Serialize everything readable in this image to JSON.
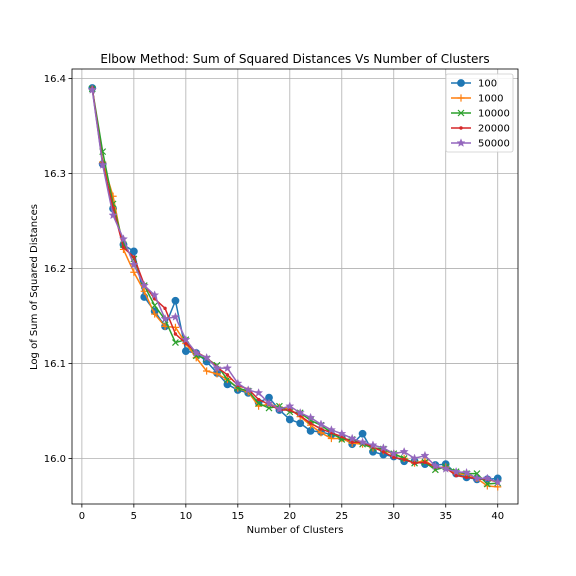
{
  "chart_data": {
    "type": "line",
    "title": "Elbow Method: Sum of Squared Distances Vs Number of Clusters",
    "xlabel": "Number of Clusters",
    "ylabel": "Log of Sum of Squared Distances",
    "xlim": [
      -0.95,
      41.95
    ],
    "ylim": [
      15.952,
      16.41
    ],
    "x_ticks": [
      0,
      5,
      10,
      15,
      20,
      25,
      30,
      35,
      40
    ],
    "y_ticks": [
      16.0,
      16.1,
      16.2,
      16.3,
      16.4
    ],
    "x_tick_labels": [
      "0",
      "5",
      "10",
      "15",
      "20",
      "25",
      "30",
      "35",
      "40"
    ],
    "y_tick_labels": [
      "16.0",
      "16.1",
      "16.2",
      "16.3",
      "16.4"
    ],
    "grid": true,
    "legend_position": "top-right",
    "x": [
      1,
      2,
      3,
      4,
      5,
      6,
      7,
      8,
      9,
      10,
      11,
      12,
      13,
      14,
      15,
      16,
      17,
      18,
      19,
      20,
      21,
      22,
      23,
      24,
      25,
      26,
      27,
      28,
      29,
      30,
      31,
      32,
      33,
      34,
      35,
      36,
      37,
      38,
      39,
      40
    ],
    "series": [
      {
        "name": "100",
        "color": "#1f77b4",
        "marker": "circle",
        "values": [
          16.39,
          16.31,
          16.263,
          16.225,
          16.218,
          16.17,
          16.155,
          16.139,
          16.166,
          16.113,
          16.111,
          16.102,
          16.09,
          16.078,
          16.072,
          16.069,
          16.059,
          16.064,
          16.051,
          16.041,
          16.037,
          16.029,
          16.028,
          16.025,
          16.022,
          16.015,
          16.026,
          16.007,
          16.004,
          16.002,
          15.997,
          15.997,
          15.994,
          15.993,
          15.994,
          15.984,
          15.98,
          15.978,
          15.978,
          15.979
        ]
      },
      {
        "name": "1000",
        "color": "#ff7f0e",
        "marker": "plus",
        "values": [
          16.389,
          16.312,
          16.276,
          16.22,
          16.196,
          16.176,
          16.152,
          16.139,
          16.138,
          16.121,
          16.106,
          16.092,
          16.089,
          16.083,
          16.074,
          16.07,
          16.055,
          16.057,
          16.054,
          16.052,
          16.044,
          16.035,
          16.027,
          16.021,
          16.021,
          16.016,
          16.015,
          16.011,
          16.008,
          16.005,
          16.0,
          15.995,
          15.998,
          15.99,
          15.991,
          15.984,
          15.983,
          15.979,
          15.971,
          15.97
        ]
      },
      {
        "name": "10000",
        "color": "#2ca02c",
        "marker": "x",
        "values": [
          16.389,
          16.323,
          16.268,
          16.225,
          16.21,
          16.182,
          16.161,
          16.146,
          16.122,
          16.125,
          16.108,
          16.105,
          16.098,
          16.083,
          16.074,
          16.071,
          16.058,
          16.053,
          16.055,
          16.049,
          16.048,
          16.04,
          16.035,
          16.027,
          16.02,
          16.02,
          16.015,
          16.011,
          16.01,
          16.005,
          16.0,
          15.995,
          15.996,
          15.988,
          15.991,
          15.986,
          15.984,
          15.984,
          15.973,
          15.974
        ]
      },
      {
        "name": "20000",
        "color": "#d62728",
        "marker": "dot",
        "values": [
          16.39,
          16.311,
          16.264,
          16.222,
          16.212,
          16.183,
          16.168,
          16.158,
          16.131,
          16.121,
          16.112,
          16.106,
          16.096,
          16.088,
          16.077,
          16.073,
          16.062,
          16.057,
          16.051,
          16.051,
          16.045,
          16.037,
          16.031,
          16.027,
          16.023,
          16.017,
          16.017,
          16.012,
          16.007,
          16.001,
          15.999,
          15.995,
          15.996,
          15.991,
          15.99,
          15.982,
          15.98,
          15.979,
          15.978,
          15.975
        ]
      },
      {
        "name": "50000",
        "color": "#9467bd",
        "marker": "star",
        "values": [
          16.388,
          16.309,
          16.256,
          16.231,
          16.204,
          16.182,
          16.172,
          16.147,
          16.149,
          16.125,
          16.111,
          16.106,
          16.095,
          16.095,
          16.079,
          16.072,
          16.069,
          16.058,
          16.052,
          16.055,
          16.048,
          16.043,
          16.036,
          16.03,
          16.026,
          16.021,
          16.017,
          16.014,
          16.011,
          16.005,
          16.007,
          16.0,
          16.003,
          15.992,
          15.989,
          15.986,
          15.985,
          15.979,
          15.979,
          15.975
        ]
      }
    ]
  }
}
